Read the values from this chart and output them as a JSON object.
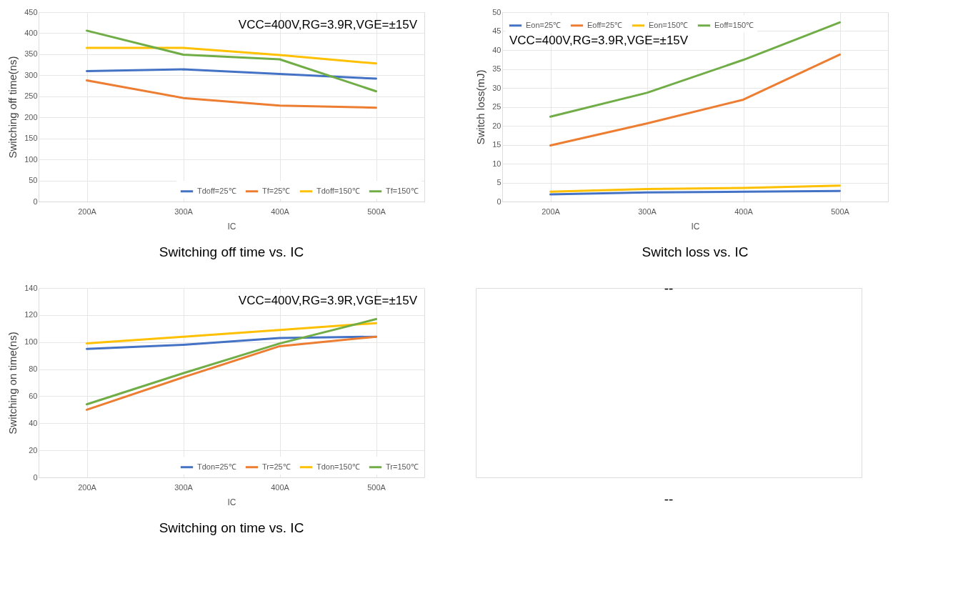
{
  "chart_data": [
    {
      "type": "line",
      "title": "Switching off time vs. IC",
      "xlabel": "IC",
      "ylabel": "Switching off time(ns)",
      "categories": [
        "200A",
        "300A",
        "400A",
        "500A"
      ],
      "series": [
        {
          "name": "Tdoff=25℃",
          "color": "#4472c4",
          "values": [
            310,
            314,
            303,
            292
          ]
        },
        {
          "name": "Tf=25℃",
          "color": "#ed7d31",
          "values": [
            288,
            246,
            228,
            223
          ]
        },
        {
          "name": "Tdoff=150℃",
          "color": "#ffc000",
          "values": [
            365,
            365,
            348,
            328
          ]
        },
        {
          "name": "Tf=150℃",
          "color": "#70ad47",
          "values": [
            406,
            349,
            338,
            262
          ]
        }
      ],
      "ylim": [
        0,
        450
      ],
      "yticks": [
        0,
        50,
        100,
        150,
        200,
        250,
        300,
        350,
        400,
        450
      ],
      "grid": true,
      "legend": "bottom right",
      "marker": "none",
      "line_style": "solid",
      "annotations": [
        "VCC=400V,RG=3.9R,VGE=±15V"
      ]
    },
    {
      "type": "line",
      "title": "Switch loss vs. IC",
      "xlabel": "IC",
      "ylabel": "Switch loss(mJ)",
      "categories": [
        "200A",
        "300A",
        "400A",
        "500A"
      ],
      "series": [
        {
          "name": "Eon=25℃",
          "color": "#4472c4",
          "values": [
            1.9,
            2.4,
            2.6,
            2.8
          ]
        },
        {
          "name": "Eoff=25℃",
          "color": "#ed7d31",
          "values": [
            14.8,
            20.6,
            26.9,
            38.8
          ]
        },
        {
          "name": "Eon=150℃",
          "color": "#ffc000",
          "values": [
            2.6,
            3.3,
            3.6,
            4.2
          ]
        },
        {
          "name": "Eoff=150℃",
          "color": "#70ad47",
          "values": [
            22.4,
            28.7,
            37.4,
            47.3
          ]
        }
      ],
      "ylim": [
        0,
        50
      ],
      "yticks": [
        0,
        5,
        10,
        15,
        20,
        25,
        30,
        35,
        40,
        45,
        50
      ],
      "grid": true,
      "legend": "top left",
      "marker": "none",
      "line_style": "solid",
      "annotations": [
        "VCC=400V,RG=3.9R,VGE=±15V"
      ]
    },
    {
      "type": "line",
      "title": "Switching on time vs. IC",
      "xlabel": "IC",
      "ylabel": "Switching on time(ns)",
      "categories": [
        "200A",
        "300A",
        "400A",
        "500A"
      ],
      "series": [
        {
          "name": "Tdon=25℃",
          "color": "#4472c4",
          "values": [
            95,
            98,
            103,
            104
          ]
        },
        {
          "name": "Tr=25℃",
          "color": "#ed7d31",
          "values": [
            50,
            74,
            97,
            104
          ]
        },
        {
          "name": "Tdon=150℃",
          "color": "#ffc000",
          "values": [
            99,
            104,
            109,
            114
          ]
        },
        {
          "name": "Tr=150℃",
          "color": "#70ad47",
          "values": [
            54,
            77,
            99,
            117
          ]
        }
      ],
      "ylim": [
        0,
        140
      ],
      "yticks": [
        0,
        20,
        40,
        60,
        80,
        100,
        120,
        140
      ],
      "grid": true,
      "legend": "bottom right",
      "marker": "none",
      "line_style": "solid",
      "annotations": [
        "VCC=400V,RG=3.9R,VGE=±15V"
      ]
    },
    {
      "type": "other",
      "title": "--",
      "annotations": [
        "--"
      ]
    }
  ]
}
